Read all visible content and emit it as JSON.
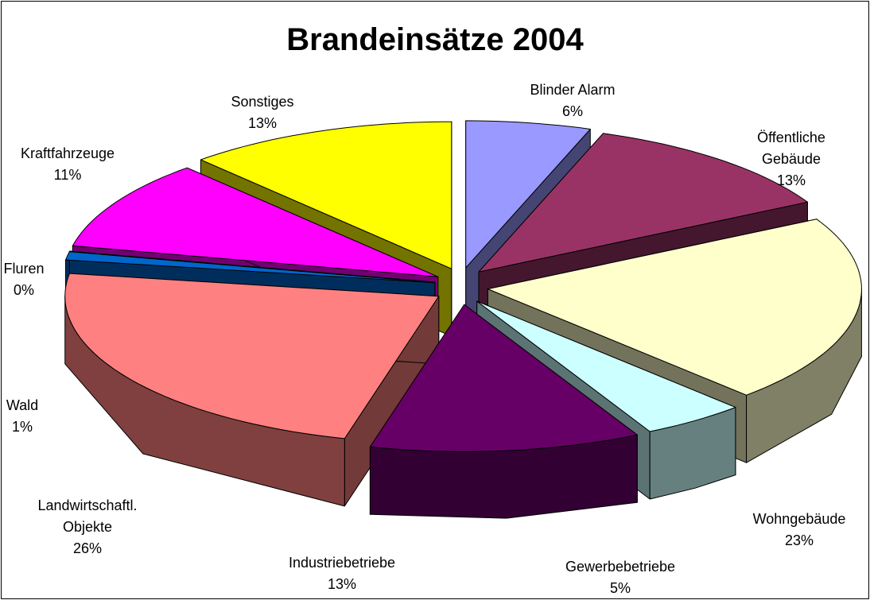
{
  "chart_data": {
    "type": "pie",
    "title": "Brandeinsätze 2004",
    "categories": [
      "Blinder Alarm",
      "Öffentliche Gebäude",
      "Wohngebäude",
      "Gewerbebetriebe",
      "Industriebetriebe",
      "Landwirtschaftl. Objekte",
      "Wald",
      "Fluren",
      "Kraftfahrzeuge",
      "Sonstiges"
    ],
    "values": [
      6,
      13,
      23,
      5,
      13,
      26,
      1,
      0,
      11,
      13
    ],
    "value_labels": [
      "6%",
      "13%",
      "23%",
      "5%",
      "13%",
      "26%",
      "1%",
      "0%",
      "11%",
      "13%"
    ],
    "colors": [
      "#9999ff",
      "#993366",
      "#ffffcc",
      "#ccffff",
      "#660066",
      "#ff8080",
      "#0066cc",
      "#800080",
      "#ff00ff",
      "#ffff00"
    ]
  }
}
